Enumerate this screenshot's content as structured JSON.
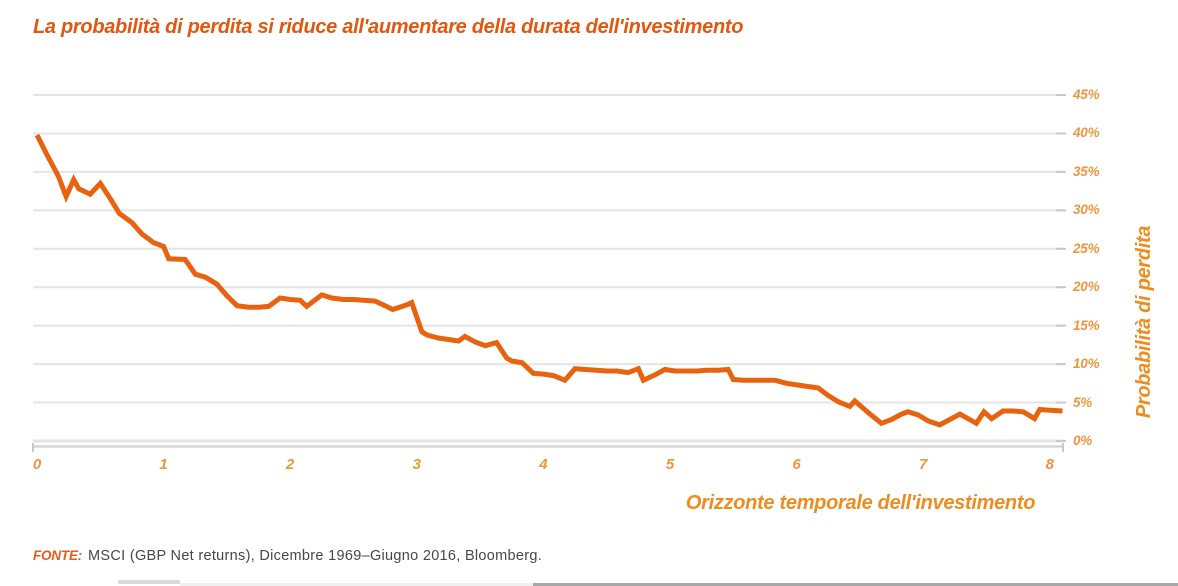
{
  "title": "La probabilità di perdita si riduce all'aumentare della durata dell'investimento",
  "chart_data": {
    "type": "line",
    "title": "La probabilità di perdita si riduce all'aumentare della durata dell'investimento",
    "xlabel": "Orizzonte temporale dell'investimento",
    "ylabel": "Probabilità di perdita",
    "x_ticks": [
      "0",
      "1",
      "2",
      "3",
      "4",
      "5",
      "6",
      "7",
      "8"
    ],
    "y_ticks": [
      "0%",
      "5%",
      "10%",
      "15%",
      "20%",
      "25%",
      "30%",
      "35%",
      "40%",
      "45%"
    ],
    "xlim": [
      0,
      8.1
    ],
    "ylim": [
      0,
      45
    ],
    "grid": true,
    "legend_position": "none",
    "line_color": "#e8630f",
    "series": [
      {
        "name": "Probabilità di perdita",
        "points": [
          [
            0.0,
            39.8
          ],
          [
            0.08,
            37.2
          ],
          [
            0.17,
            34.4
          ],
          [
            0.23,
            31.8
          ],
          [
            0.29,
            34.0
          ],
          [
            0.33,
            32.8
          ],
          [
            0.42,
            32.1
          ],
          [
            0.5,
            33.5
          ],
          [
            0.58,
            31.5
          ],
          [
            0.65,
            29.6
          ],
          [
            0.75,
            28.4
          ],
          [
            0.83,
            26.9
          ],
          [
            0.92,
            25.8
          ],
          [
            1.0,
            25.3
          ],
          [
            1.04,
            23.7
          ],
          [
            1.17,
            23.6
          ],
          [
            1.25,
            21.7
          ],
          [
            1.33,
            21.3
          ],
          [
            1.42,
            20.4
          ],
          [
            1.5,
            18.9
          ],
          [
            1.58,
            17.6
          ],
          [
            1.67,
            17.4
          ],
          [
            1.75,
            17.4
          ],
          [
            1.83,
            17.5
          ],
          [
            1.92,
            18.6
          ],
          [
            2.0,
            18.4
          ],
          [
            2.08,
            18.3
          ],
          [
            2.13,
            17.5
          ],
          [
            2.25,
            19.0
          ],
          [
            2.33,
            18.6
          ],
          [
            2.42,
            18.4
          ],
          [
            2.5,
            18.4
          ],
          [
            2.58,
            18.3
          ],
          [
            2.67,
            18.2
          ],
          [
            2.75,
            17.6
          ],
          [
            2.81,
            17.1
          ],
          [
            2.92,
            17.7
          ],
          [
            2.96,
            18.0
          ],
          [
            3.04,
            14.2
          ],
          [
            3.08,
            13.8
          ],
          [
            3.17,
            13.4
          ],
          [
            3.25,
            13.2
          ],
          [
            3.33,
            13.0
          ],
          [
            3.38,
            13.6
          ],
          [
            3.46,
            12.9
          ],
          [
            3.54,
            12.4
          ],
          [
            3.63,
            12.8
          ],
          [
            3.71,
            10.8
          ],
          [
            3.75,
            10.4
          ],
          [
            3.83,
            10.2
          ],
          [
            3.92,
            8.8
          ],
          [
            4.0,
            8.7
          ],
          [
            4.08,
            8.5
          ],
          [
            4.17,
            7.9
          ],
          [
            4.25,
            9.4
          ],
          [
            4.33,
            9.3
          ],
          [
            4.42,
            9.2
          ],
          [
            4.5,
            9.1
          ],
          [
            4.58,
            9.1
          ],
          [
            4.67,
            8.9
          ],
          [
            4.75,
            9.4
          ],
          [
            4.79,
            7.9
          ],
          [
            4.88,
            8.6
          ],
          [
            4.96,
            9.3
          ],
          [
            5.04,
            9.1
          ],
          [
            5.13,
            9.1
          ],
          [
            5.21,
            9.1
          ],
          [
            5.29,
            9.2
          ],
          [
            5.38,
            9.2
          ],
          [
            5.46,
            9.3
          ],
          [
            5.5,
            8.0
          ],
          [
            5.58,
            7.9
          ],
          [
            5.67,
            7.9
          ],
          [
            5.75,
            7.9
          ],
          [
            5.83,
            7.9
          ],
          [
            5.92,
            7.5
          ],
          [
            6.0,
            7.3
          ],
          [
            6.08,
            7.1
          ],
          [
            6.17,
            6.9
          ],
          [
            6.25,
            5.9
          ],
          [
            6.33,
            5.1
          ],
          [
            6.42,
            4.5
          ],
          [
            6.46,
            5.2
          ],
          [
            6.58,
            3.5
          ],
          [
            6.67,
            2.3
          ],
          [
            6.75,
            2.8
          ],
          [
            6.83,
            3.5
          ],
          [
            6.88,
            3.8
          ],
          [
            6.96,
            3.4
          ],
          [
            7.04,
            2.6
          ],
          [
            7.13,
            2.1
          ],
          [
            7.21,
            2.8
          ],
          [
            7.29,
            3.5
          ],
          [
            7.42,
            2.3
          ],
          [
            7.48,
            3.8
          ],
          [
            7.54,
            2.9
          ],
          [
            7.63,
            3.9
          ],
          [
            7.71,
            3.9
          ],
          [
            7.79,
            3.8
          ],
          [
            7.88,
            2.9
          ],
          [
            7.92,
            4.1
          ],
          [
            8.0,
            4.0
          ],
          [
            8.1,
            3.9
          ]
        ]
      }
    ]
  },
  "footer": {
    "source_label": "FONTE:",
    "source_text": "MSCI (GBP Net returns), Dicembre 1969–Giugno 2016, Bloomberg."
  },
  "colors": {
    "title": "#e4570f",
    "line": "#e8630f",
    "tick_labels": "#f0953f",
    "axis_titles": "#f08c1d",
    "source_label": "#ee5a15",
    "source_text": "#474746",
    "gridline": "#e4e4e4",
    "axis_line": "#d6d6d6",
    "tick_dash": "#c9c9c9",
    "bottom_strip_light": "#f0f0f0",
    "bottom_strip_mid": "#d9d9d9",
    "bottom_strip_dark": "#a8a8a8"
  }
}
